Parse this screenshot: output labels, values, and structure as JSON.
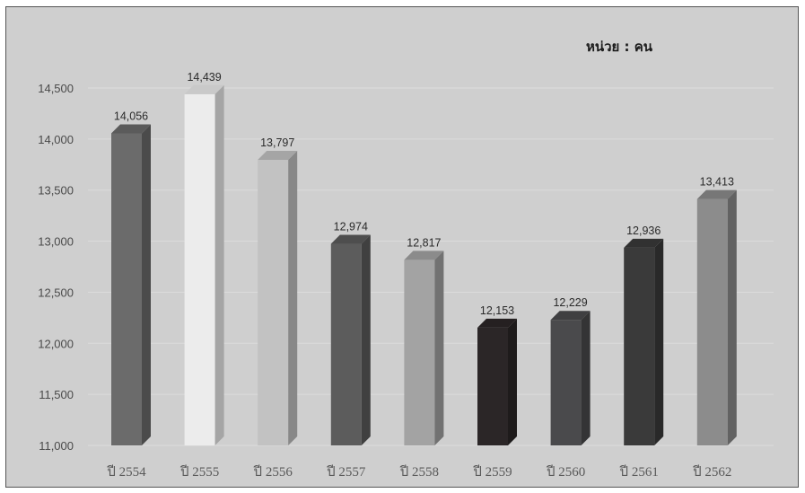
{
  "chart_data": {
    "type": "bar",
    "unit_label": "หน่วย : คน",
    "categories": [
      "ปี 2554",
      "ปี 2555",
      "ปี 2556",
      "ปี 2557",
      "ปี 2558",
      "ปี 2559",
      "ปี 2560",
      "ปี 2561",
      "ปี 2562"
    ],
    "values": [
      14056,
      14439,
      13797,
      12974,
      12817,
      12153,
      12229,
      12936,
      13413
    ],
    "value_labels": [
      "14,056",
      "14,439",
      "13,797",
      "12,974",
      "12,817",
      "12,153",
      "12,229",
      "12,936",
      "13,413"
    ],
    "bar_colors": [
      "#6b6b6b",
      "#ececec",
      "#c2c2c2",
      "#5c5c5c",
      "#a3a3a3",
      "#2b2627",
      "#4a4a4c",
      "#3a3a3a",
      "#8c8c8c"
    ],
    "y_ticks": [
      11000,
      11500,
      12000,
      12500,
      13000,
      13500,
      14000,
      14500
    ],
    "y_tick_labels": [
      "11,000",
      "11,500",
      "12,000",
      "12,500",
      "13,000",
      "13,500",
      "14,000",
      "14,500"
    ],
    "ylim": [
      11000,
      14500
    ],
    "grid": true,
    "style": "3d-column",
    "background": "#cfcfcf"
  }
}
